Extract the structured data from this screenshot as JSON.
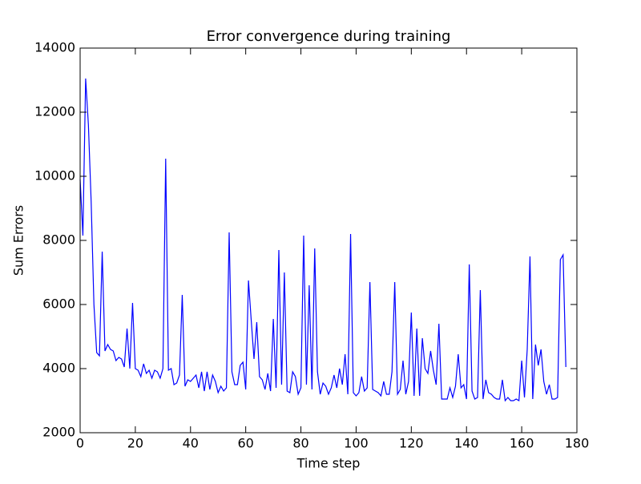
{
  "chart_data": {
    "type": "line",
    "title": "Error convergence during training",
    "xlabel": "Time step",
    "ylabel": "Sum Errors",
    "x": [
      0,
      1,
      2,
      3,
      4,
      5,
      6,
      7,
      8,
      9,
      10,
      11,
      12,
      13,
      14,
      15,
      16,
      17,
      18,
      19,
      20,
      21,
      22,
      23,
      24,
      25,
      26,
      27,
      28,
      29,
      30,
      31,
      32,
      33,
      34,
      35,
      36,
      37,
      38,
      39,
      40,
      41,
      42,
      43,
      44,
      45,
      46,
      47,
      48,
      49,
      50,
      51,
      52,
      53,
      54,
      55,
      56,
      57,
      58,
      59,
      60,
      61,
      62,
      63,
      64,
      65,
      66,
      67,
      68,
      69,
      70,
      71,
      72,
      73,
      74,
      75,
      76,
      77,
      78,
      79,
      80,
      81,
      82,
      83,
      84,
      85,
      86,
      87,
      88,
      89,
      90,
      91,
      92,
      93,
      94,
      95,
      96,
      97,
      98,
      99,
      100,
      101,
      102,
      103,
      104,
      105,
      106,
      107,
      108,
      109,
      110,
      111,
      112,
      113,
      114,
      115,
      116,
      117,
      118,
      119,
      120,
      121,
      122,
      123,
      124,
      125,
      126,
      127,
      128,
      129,
      130,
      131,
      132,
      133,
      134,
      135,
      136,
      137,
      138,
      139,
      140,
      141,
      142,
      143,
      144,
      145,
      146,
      147,
      148,
      149,
      150,
      151,
      152,
      153,
      154,
      155,
      156,
      157,
      158,
      159,
      160,
      161,
      162,
      163,
      164,
      165,
      166,
      167,
      168,
      169,
      170,
      171,
      172,
      173,
      174,
      175,
      176
    ],
    "series": [
      {
        "name": "Sum Errors",
        "color": "#0000ff",
        "values": [
          9900,
          8150,
          13050,
          11600,
          9200,
          6000,
          4500,
          4400,
          7650,
          4550,
          4750,
          4600,
          4550,
          4250,
          4350,
          4300,
          4050,
          5250,
          4000,
          6050,
          4000,
          3950,
          3750,
          4150,
          3850,
          3950,
          3700,
          3950,
          3900,
          3700,
          4000,
          10550,
          3950,
          4000,
          3500,
          3550,
          3800,
          6300,
          3450,
          3650,
          3600,
          3700,
          3800,
          3400,
          3900,
          3300,
          3900,
          3350,
          3800,
          3600,
          3250,
          3450,
          3300,
          3400,
          8250,
          3900,
          3500,
          3500,
          4100,
          4200,
          3350,
          6750,
          5500,
          4300,
          5450,
          3750,
          3650,
          3350,
          3850,
          3300,
          5550,
          3400,
          7700,
          3500,
          7000,
          3300,
          3250,
          3900,
          3750,
          3200,
          3400,
          8150,
          3500,
          6600,
          3350,
          7750,
          3900,
          3200,
          3550,
          3450,
          3200,
          3400,
          3800,
          3400,
          4000,
          3500,
          4450,
          3200,
          8200,
          3250,
          3150,
          3250,
          3750,
          3300,
          3400,
          6700,
          3350,
          3300,
          3250,
          3150,
          3600,
          3200,
          3200,
          3900,
          6700,
          3200,
          3350,
          4250,
          3200,
          3600,
          5750,
          3150,
          5250,
          3150,
          4950,
          4000,
          3850,
          4550,
          3950,
          3500,
          5400,
          3050,
          3050,
          3050,
          3400,
          3100,
          3450,
          4450,
          3400,
          3500,
          3050,
          7250,
          3300,
          3050,
          3100,
          6450,
          3050,
          3650,
          3250,
          3200,
          3100,
          3050,
          3050,
          3650,
          3000,
          3100,
          3000,
          3000,
          3050,
          3000,
          4250,
          3100,
          4600,
          7500,
          3050,
          4750,
          4100,
          4600,
          3600,
          3200,
          3500,
          3050,
          3050,
          3100,
          7400,
          7550,
          4050
        ]
      }
    ],
    "xlim": [
      0,
      180
    ],
    "xticks": [
      0,
      20,
      40,
      60,
      80,
      100,
      120,
      140,
      160,
      180
    ],
    "ylim": [
      2000,
      14000
    ],
    "yticks": [
      2000,
      4000,
      6000,
      8000,
      10000,
      12000,
      14000
    ]
  }
}
